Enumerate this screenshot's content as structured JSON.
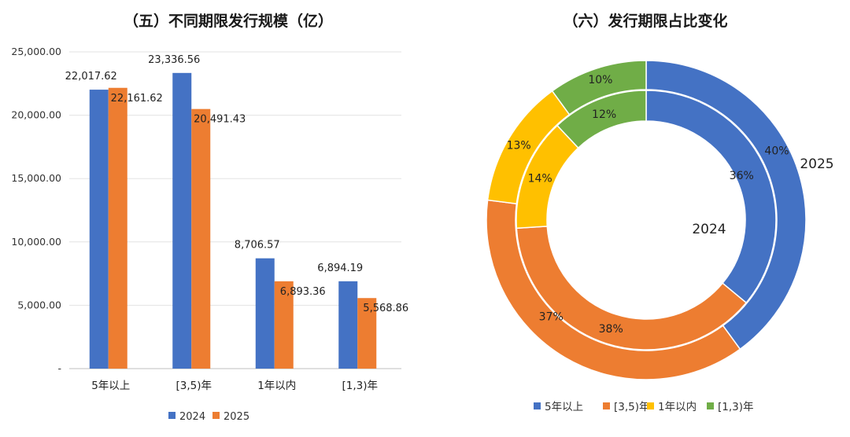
{
  "chart_data": [
    {
      "type": "bar",
      "title": "（五）不同期限发行规模（亿）",
      "categories": [
        "5年以上",
        "[3,5)年",
        "1年以内",
        "[1,3)年"
      ],
      "series": [
        {
          "name": "2024",
          "color": "#4472C4",
          "values": [
            22017.62,
            23336.56,
            8706.57,
            6894.19
          ],
          "labels": [
            "22,017.62",
            "23,336.56",
            "8,706.57",
            "6,894.19"
          ]
        },
        {
          "name": "2025",
          "color": "#ED7D31",
          "values": [
            22161.62,
            20491.43,
            6893.36,
            5568.86
          ],
          "labels": [
            "22,161.62",
            "20,491.43",
            "6,893.36",
            "5,568.86"
          ]
        }
      ],
      "ylim": [
        0,
        25000
      ],
      "yticks": [
        0,
        5000,
        10000,
        15000,
        20000,
        25000
      ],
      "ytick_labels": [
        "-",
        "5,000.00",
        "10,000.00",
        "15,000.00",
        "20,000.00",
        "25,000.00"
      ],
      "legend": [
        "2024",
        "2025"
      ],
      "legend_position": "bottom"
    },
    {
      "type": "pie",
      "title": "（六）发行期限占比变化",
      "categories": [
        "5年以上",
        "[3,5)年",
        "1年以内",
        "[1,3)年"
      ],
      "colors": [
        "#4472C4",
        "#ED7D31",
        "#FFC000",
        "#70AD47"
      ],
      "series": [
        {
          "name": "2024",
          "ring": "inner",
          "values": [
            36,
            38,
            14,
            12
          ],
          "labels": [
            "36%",
            "38%",
            "14%",
            "12%"
          ]
        },
        {
          "name": "2025",
          "ring": "outer",
          "values": [
            40,
            37,
            13,
            10
          ],
          "labels": [
            "40%",
            "37%",
            "13%",
            "10%"
          ]
        }
      ],
      "center_label": "2024",
      "outer_label": "2025",
      "legend": [
        "5年以上",
        "[3,5)年",
        "1年以内",
        "[1,3)年"
      ],
      "legend_position": "bottom"
    }
  ]
}
